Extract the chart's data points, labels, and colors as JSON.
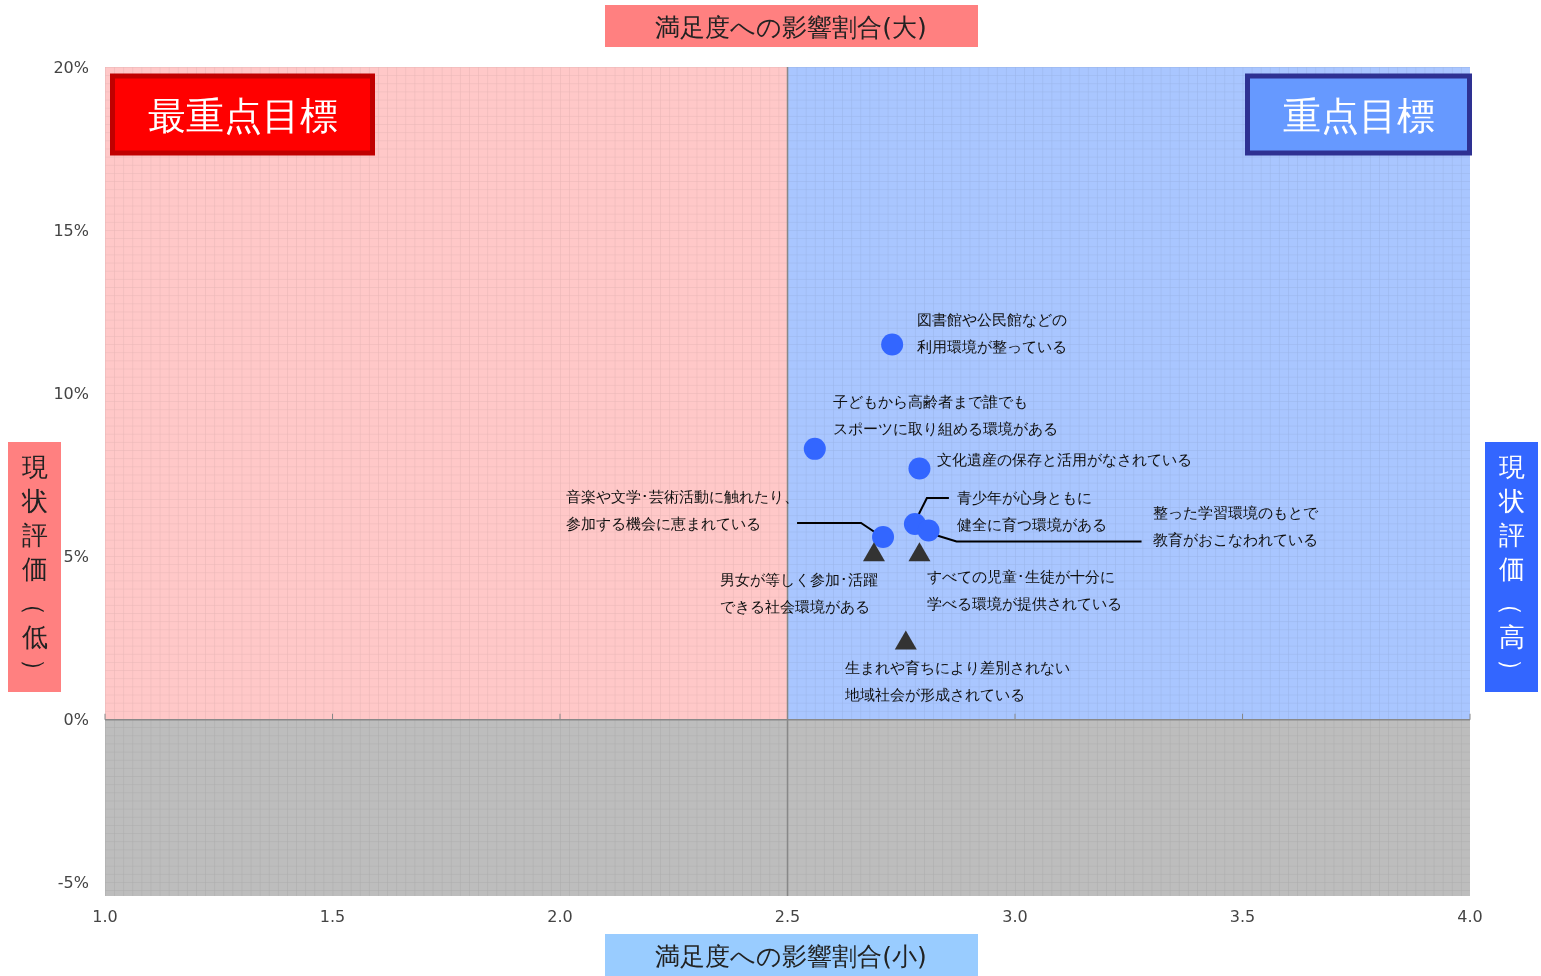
{
  "chart_data": {
    "type": "scatter",
    "title": "満足度への影響割合(大)",
    "xlabel": "満足度への影響割合(小)",
    "ylabel": "現状評価（低）",
    "y2label": "現状評価（高）",
    "series": [
      {
        "type": "scatter",
        "color": "#3366ff",
        "marker": "circle",
        "x": [
          2.73,
          2.56,
          2.79,
          2.78,
          2.81,
          2.71
        ],
        "values": [
          11.5,
          8.3,
          7.7,
          6.0,
          5.8,
          5.6
        ]
      },
      {
        "type": "scatter",
        "color": "#333333",
        "marker": "triangle",
        "x": [
          2.69,
          2.79,
          2.76
        ],
        "values": [
          5.1,
          5.1,
          2.4
        ]
      }
    ],
    "xlim": [
      1,
      4
    ],
    "xticks": [
      {
        "value": 1,
        "label": "1.0"
      },
      {
        "value": 1.5,
        "label": "1.5"
      },
      {
        "value": 2,
        "label": "2.0"
      },
      {
        "value": 2.5,
        "label": "2.5"
      },
      {
        "value": 3,
        "label": "3.0"
      },
      {
        "value": 3.5,
        "label": "3.5"
      },
      {
        "value": 4,
        "label": "4.0"
      }
    ],
    "ylim": [
      -5.4,
      20
    ],
    "yticks": [
      {
        "value": -5,
        "label": "-5%"
      },
      {
        "value": 0,
        "label": "0%"
      },
      {
        "value": 5,
        "label": "5%"
      },
      {
        "value": 10,
        "label": "10%"
      },
      {
        "value": 15,
        "label": "15%"
      },
      {
        "value": 20,
        "label": "20%"
      }
    ],
    "bands": [
      {
        "axis": "x",
        "from": 1,
        "to": 2.5,
        "label": "最重点目標",
        "color": "#ffc8c8"
      },
      {
        "axis": "x",
        "from": 2.5,
        "to": 4,
        "label": "重点目標",
        "color": "#a9c6ff"
      },
      {
        "axis": "y",
        "from": -5.4,
        "to": 0,
        "color": "#bdbdbd"
      }
    ],
    "annotations": [
      {
        "text": "図書館や公民館などの利用環境が整っている",
        "x": 2.73,
        "y": 11.5
      },
      {
        "text": "子どもから高齢者まで誰でもスポーツに取り組める環境がある",
        "x": 2.56,
        "y": 8.3
      },
      {
        "text": "文化遺産の保存と活用がなされている",
        "x": 2.79,
        "y": 7.7
      },
      {
        "text": "青少年が心身ともに健全に育つ環境がある",
        "x": 2.78,
        "y": 6.0
      },
      {
        "text": "整った学習環境のもとで教育がおこなわれている",
        "x": 2.81,
        "y": 5.8
      },
      {
        "text": "音楽や文学･芸術活動に触れたり、参加する機会に恵まれている",
        "x": 2.71,
        "y": 5.6
      },
      {
        "text": "男女が等しく参加･活躍できる社会環境がある",
        "x": 2.69,
        "y": 5.1
      },
      {
        "text": "すべての児童･生徒が十分に学べる環境が提供されている",
        "x": 2.79,
        "y": 5.1
      },
      {
        "text": "生まれや育ちにより差別されない地域社会が形成されている",
        "x": 2.76,
        "y": 2.4
      }
    ],
    "grid": true
  }
}
